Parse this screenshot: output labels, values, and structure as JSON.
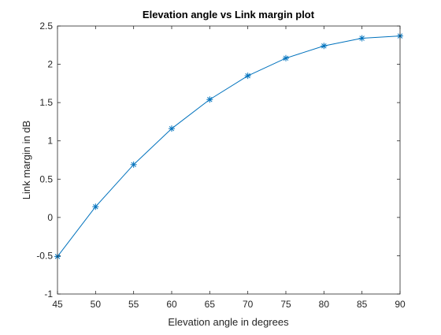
{
  "chart_data": {
    "type": "line",
    "title": "Elevation angle vs Link margin plot",
    "xlabel": "Elevation angle in degrees",
    "ylabel": "Link margin in dB",
    "xlim": [
      45,
      90
    ],
    "ylim": [
      -1,
      2.5
    ],
    "x_ticks": [
      45,
      50,
      55,
      60,
      65,
      70,
      75,
      80,
      85,
      90
    ],
    "y_ticks": [
      -1,
      -0.5,
      0,
      0.5,
      1,
      1.5,
      2,
      2.5
    ],
    "x_tick_labels": [
      "45",
      "50",
      "55",
      "60",
      "65",
      "70",
      "75",
      "80",
      "85",
      "90"
    ],
    "y_tick_labels": [
      "-1",
      "-0.5",
      "0",
      "0.5",
      "1",
      "1.5",
      "2",
      "2.5"
    ],
    "grid": false,
    "series": [
      {
        "color": "#0072BD",
        "marker": "asterisk",
        "x": [
          45,
          50,
          55,
          60,
          65,
          70,
          75,
          80,
          85,
          90
        ],
        "y": [
          -0.51,
          0.14,
          0.69,
          1.16,
          1.54,
          1.85,
          2.08,
          2.24,
          2.34,
          2.37
        ]
      }
    ]
  }
}
